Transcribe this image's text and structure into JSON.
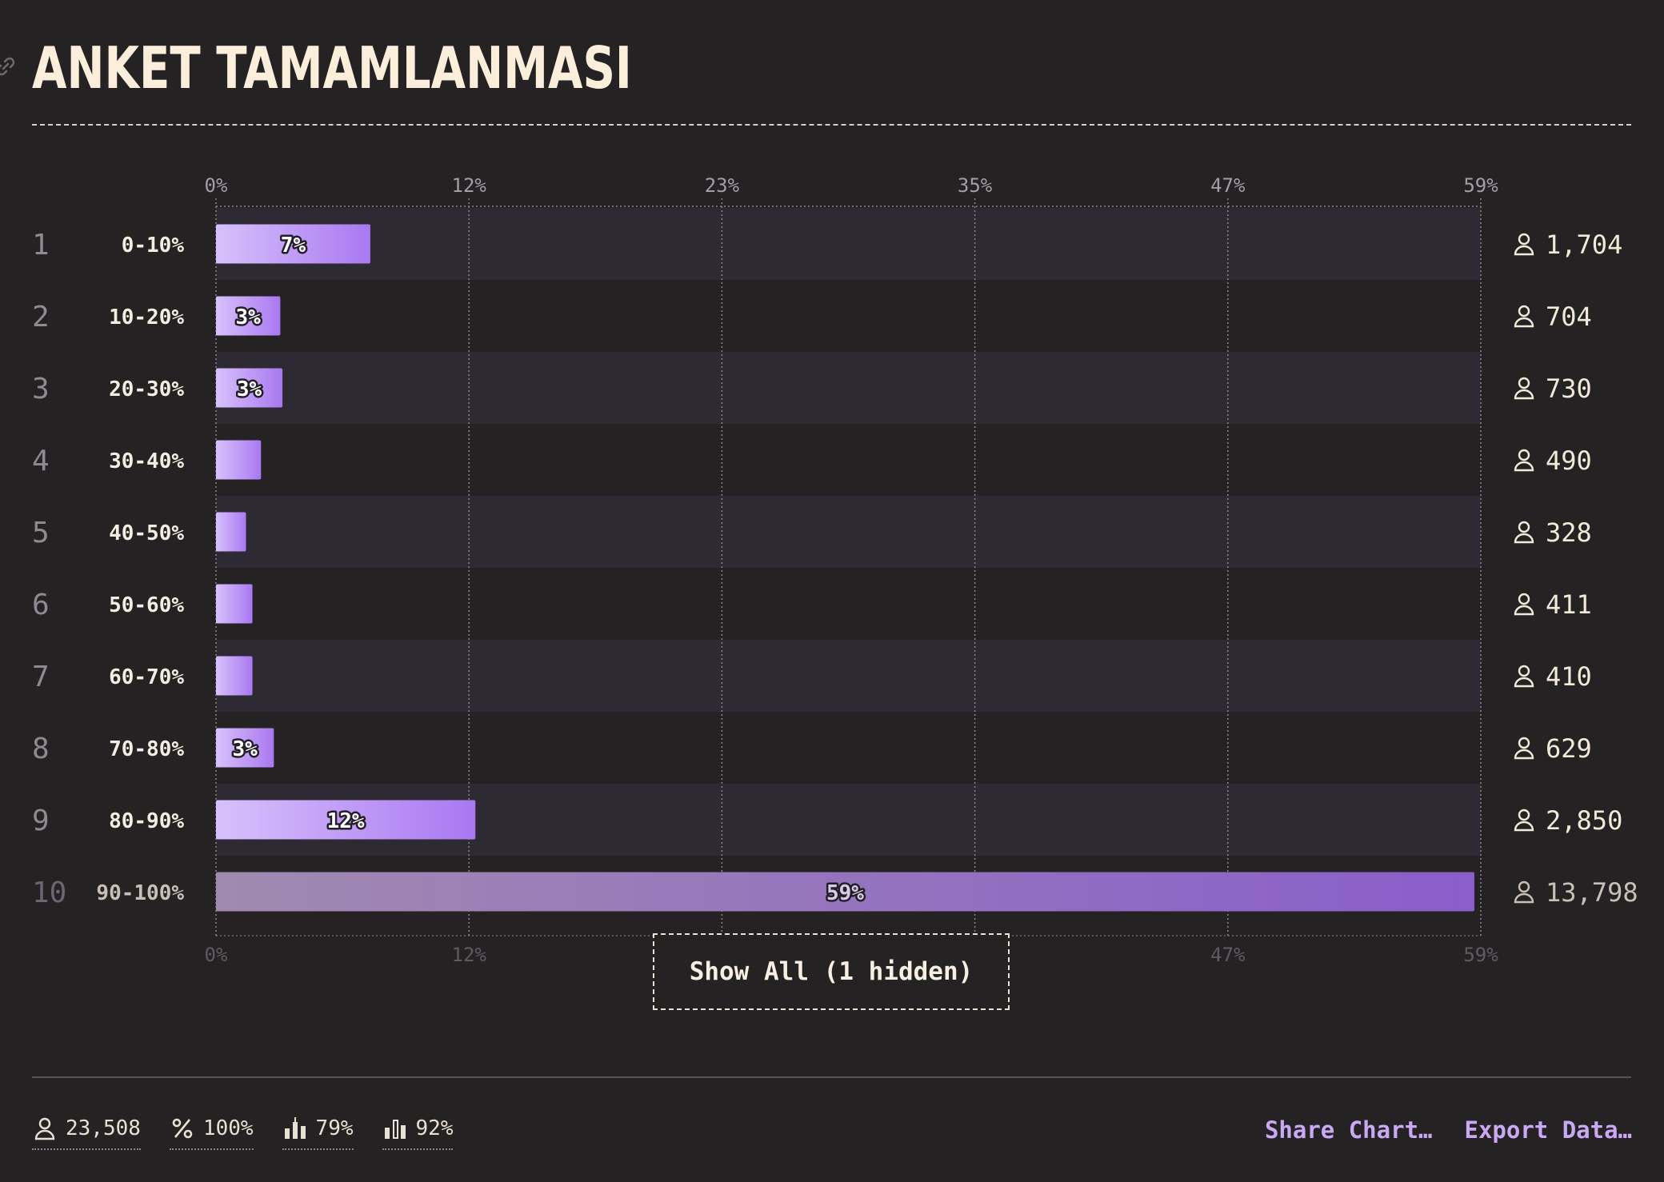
{
  "title": "ANKET TAMAMLANMASI",
  "chart_data": {
    "type": "bar",
    "orientation": "horizontal",
    "x_ticks": [
      "0%",
      "12%",
      "23%",
      "35%",
      "47%",
      "59%"
    ],
    "xlim": [
      0,
      59
    ],
    "grid": true,
    "rows": [
      {
        "rank": "1",
        "category": "0-10%",
        "percent": 7.2,
        "label": "7%",
        "count": "1,704"
      },
      {
        "rank": "2",
        "category": "10-20%",
        "percent": 3.0,
        "label": "3%",
        "count": "704"
      },
      {
        "rank": "3",
        "category": "20-30%",
        "percent": 3.1,
        "label": "3%",
        "count": "730"
      },
      {
        "rank": "4",
        "category": "30-40%",
        "percent": 2.1,
        "label": "",
        "count": "490"
      },
      {
        "rank": "5",
        "category": "40-50%",
        "percent": 1.4,
        "label": "",
        "count": "328"
      },
      {
        "rank": "6",
        "category": "50-60%",
        "percent": 1.7,
        "label": "",
        "count": "411"
      },
      {
        "rank": "7",
        "category": "60-70%",
        "percent": 1.7,
        "label": "",
        "count": "410"
      },
      {
        "rank": "8",
        "category": "70-80%",
        "percent": 2.7,
        "label": "3%",
        "count": "629"
      },
      {
        "rank": "9",
        "category": "80-90%",
        "percent": 12.1,
        "label": "12%",
        "count": "2,850"
      },
      {
        "rank": "10",
        "category": "90-100%",
        "percent": 58.7,
        "label": "59%",
        "count": "13,798",
        "muted": true
      }
    ],
    "colors": {
      "bar_start": "#d7c1fb",
      "bar_end": "#a978f1",
      "muted_start": "#a08ab0",
      "muted_end": "#8a5ecb"
    }
  },
  "show_all_label": "Show All (1 hidden)",
  "stats": [
    {
      "icon": "person-icon",
      "value": "23,508"
    },
    {
      "icon": "percent-icon",
      "value": "100%"
    },
    {
      "icon": "candlestick-icon",
      "value": "79%"
    },
    {
      "icon": "bar-chart-icon",
      "value": "92%"
    }
  ],
  "actions": {
    "share": "Share Chart…",
    "export": "Export Data…"
  }
}
